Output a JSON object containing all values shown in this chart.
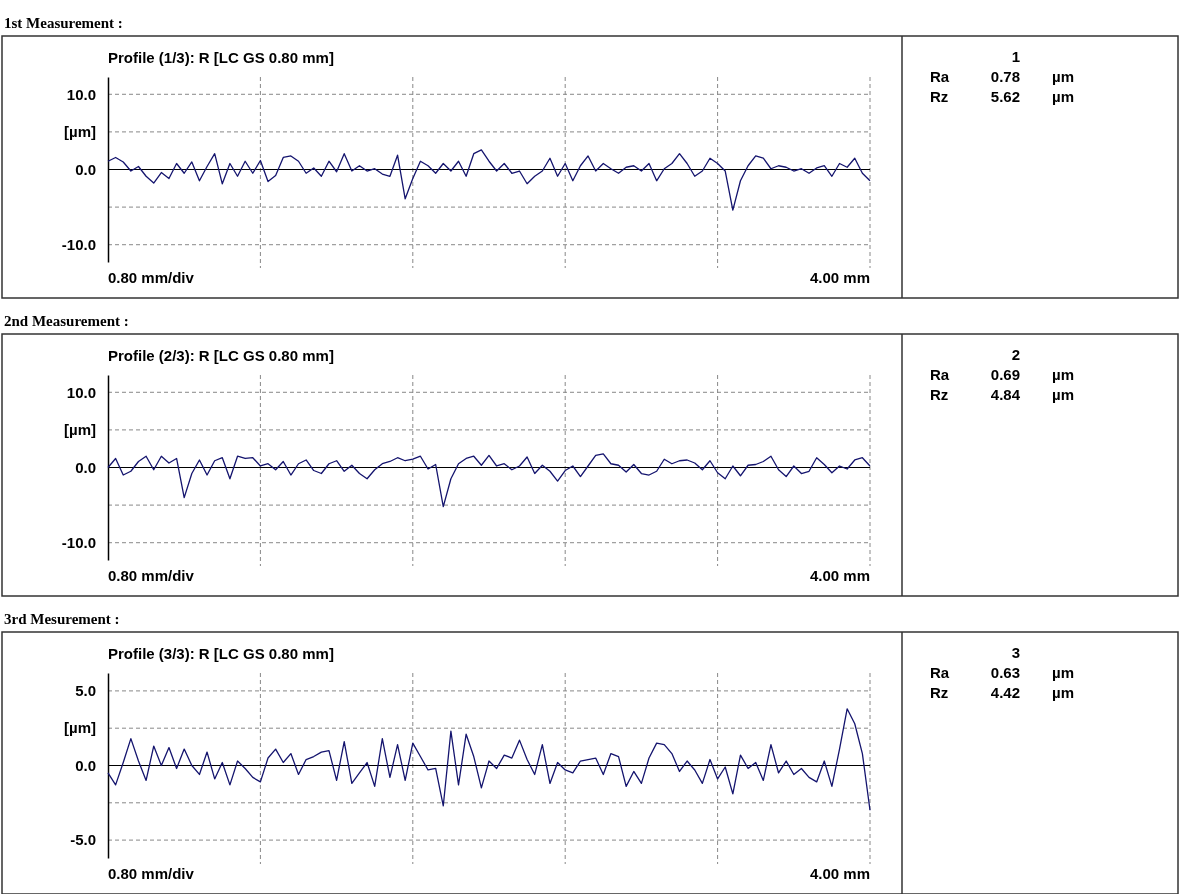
{
  "chart_data": [
    {
      "type": "line",
      "title": "1st Measurement :",
      "subtitle": "Profile (1/3): R [LC GS 0.80 mm]",
      "xlabel": "0.80 mm/div",
      "ylabel": "[µm]",
      "annotations": [
        "4.00 mm"
      ],
      "categories": [
        null,
        null,
        null,
        null,
        null,
        null,
        null,
        null,
        null,
        null,
        null,
        null,
        null,
        null,
        null,
        null,
        null,
        null,
        null,
        null,
        null,
        null,
        null,
        null,
        null,
        null,
        null,
        null,
        null,
        null,
        null,
        null,
        null,
        null,
        null,
        null,
        null,
        null,
        null,
        null,
        null,
        null,
        null,
        null,
        null,
        null,
        null,
        null,
        null,
        null,
        null,
        null,
        null,
        null,
        null,
        null,
        null,
        null,
        null,
        null,
        null,
        null,
        null,
        null,
        null,
        null,
        null,
        null,
        null,
        null,
        null,
        null,
        null,
        null,
        null,
        null,
        null,
        null,
        null,
        null,
        null,
        null,
        null,
        null,
        null,
        null,
        null,
        null,
        null,
        null,
        null,
        null,
        null,
        null,
        null,
        null,
        null,
        null,
        null,
        null,
        null
      ],
      "series": [
        {
          "color": "#14146e",
          "values": [
            1.1,
            1.6,
            1.0,
            -0.2,
            0.4,
            -0.9,
            -1.8,
            -0.4,
            -1.2,
            0.8,
            -0.5,
            1.0,
            -1.5,
            0.4,
            2.1,
            -1.9,
            0.8,
            -0.9,
            1.1,
            -0.5,
            1.2,
            -1.6,
            -0.8,
            1.6,
            1.8,
            1.1,
            -0.5,
            0.2,
            -0.9,
            1.1,
            -0.3,
            2.1,
            -0.2,
            0.5,
            -0.2,
            0.1,
            -0.6,
            -0.9,
            1.9,
            -3.9,
            -1.2,
            1.1,
            0.5,
            -0.5,
            0.8,
            -0.2,
            1.1,
            -0.9,
            2.1,
            2.6,
            1.1,
            -0.2,
            0.8,
            -0.5,
            -0.2,
            -1.9,
            -0.9,
            -0.2,
            1.5,
            -0.9,
            0.8,
            -1.5,
            0.5,
            1.8,
            -0.2,
            0.8,
            0.1,
            -0.5,
            0.3,
            0.5,
            -0.2,
            0.8,
            -1.5,
            0.1,
            0.8,
            2.1,
            0.8,
            -0.9,
            -0.2,
            1.5,
            0.8,
            -0.2,
            -5.4,
            -1.5,
            0.5,
            1.8,
            1.5,
            0.1,
            0.5,
            0.3,
            -0.2,
            0.1,
            -0.5,
            0.2,
            0.5,
            -0.9,
            0.8,
            0.3,
            1.5,
            -0.5,
            -1.5
          ]
        }
      ],
      "ylim": [
        -12.3,
        12.3
      ],
      "yticks": [
        {
          "value": 10,
          "label": "10.0"
        },
        {
          "value": 5,
          "label": null
        },
        {
          "value": 0,
          "label": "0.0"
        },
        {
          "value": -5,
          "label": null
        },
        {
          "value": -10,
          "label": "-10.0"
        }
      ],
      "ref_lines": [
        {
          "axis": "y",
          "value": 0,
          "color": "#000000"
        }
      ],
      "grid": true,
      "tick_labels": "y",
      "line_style": "solid"
    },
    {
      "type": "other",
      "title": "1",
      "annotations": [
        "Ra",
        "0.78",
        "µm",
        "Rz",
        "5.62",
        "µm"
      ]
    },
    {
      "type": "line",
      "title": "2nd Measurement :",
      "subtitle": "Profile (2/3): R [LC GS 0.80 mm]",
      "xlabel": "0.80 mm/div",
      "ylabel": "[µm]",
      "annotations": [
        "4.00 mm"
      ],
      "categories": [
        null,
        null,
        null,
        null,
        null,
        null,
        null,
        null,
        null,
        null,
        null,
        null,
        null,
        null,
        null,
        null,
        null,
        null,
        null,
        null,
        null,
        null,
        null,
        null,
        null,
        null,
        null,
        null,
        null,
        null,
        null,
        null,
        null,
        null,
        null,
        null,
        null,
        null,
        null,
        null,
        null,
        null,
        null,
        null,
        null,
        null,
        null,
        null,
        null,
        null,
        null,
        null,
        null,
        null,
        null,
        null,
        null,
        null,
        null,
        null,
        null,
        null,
        null,
        null,
        null,
        null,
        null,
        null,
        null,
        null,
        null,
        null,
        null,
        null,
        null,
        null,
        null,
        null,
        null,
        null,
        null,
        null,
        null,
        null,
        null,
        null,
        null,
        null,
        null,
        null,
        null,
        null,
        null,
        null,
        null,
        null,
        null,
        null,
        null,
        null,
        null
      ],
      "series": [
        {
          "color": "#14146e",
          "values": [
            0.0,
            1.2,
            -1.0,
            -0.5,
            0.8,
            1.5,
            -0.3,
            1.5,
            0.6,
            1.2,
            -4.0,
            -0.8,
            1.0,
            -1.0,
            0.9,
            1.3,
            -1.5,
            1.5,
            1.2,
            1.3,
            0.2,
            0.5,
            -0.3,
            0.8,
            -1.0,
            0.5,
            1.0,
            -0.4,
            -0.8,
            0.5,
            0.9,
            -0.5,
            0.3,
            -0.8,
            -1.5,
            -0.3,
            0.5,
            0.8,
            1.3,
            0.9,
            1.1,
            1.5,
            -0.2,
            0.4,
            -5.2,
            -1.5,
            0.5,
            1.2,
            1.5,
            0.3,
            1.6,
            0.2,
            0.5,
            -0.3,
            0.2,
            1.4,
            -0.8,
            0.3,
            -0.5,
            -1.8,
            -0.4,
            0.2,
            -1.2,
            0.2,
            1.6,
            1.8,
            0.5,
            0.3,
            -0.6,
            0.4,
            -0.8,
            -1.0,
            -0.5,
            1.1,
            0.5,
            0.9,
            1.0,
            0.6,
            -0.3,
            0.9,
            -0.7,
            -1.5,
            0.2,
            -1.1,
            0.3,
            0.4,
            0.8,
            1.5,
            -0.3,
            -1.2,
            0.2,
            -0.8,
            -0.5,
            1.3,
            0.4,
            -0.7,
            0.2,
            -0.2,
            1.0,
            1.3,
            0.2
          ]
        }
      ],
      "ylim": [
        -12.3,
        12.3
      ],
      "yticks": [
        {
          "value": 10,
          "label": "10.0"
        },
        {
          "value": 5,
          "label": null
        },
        {
          "value": 0,
          "label": "0.0"
        },
        {
          "value": -5,
          "label": null
        },
        {
          "value": -10,
          "label": "-10.0"
        }
      ],
      "ref_lines": [
        {
          "axis": "y",
          "value": 0,
          "color": "#000000"
        }
      ],
      "grid": true,
      "tick_labels": "y",
      "line_style": "solid"
    },
    {
      "type": "other",
      "title": "2",
      "annotations": [
        "Ra",
        "0.69",
        "µm",
        "Rz",
        "4.84",
        "µm"
      ]
    },
    {
      "type": "line",
      "title": "3rd Mesurement :",
      "subtitle": "Profile (3/3): R [LC GS 0.80 mm]",
      "xlabel": "0.80 mm/div",
      "ylabel": "[µm]",
      "annotations": [
        "4.00 mm"
      ],
      "categories": [
        null,
        null,
        null,
        null,
        null,
        null,
        null,
        null,
        null,
        null,
        null,
        null,
        null,
        null,
        null,
        null,
        null,
        null,
        null,
        null,
        null,
        null,
        null,
        null,
        null,
        null,
        null,
        null,
        null,
        null,
        null,
        null,
        null,
        null,
        null,
        null,
        null,
        null,
        null,
        null,
        null,
        null,
        null,
        null,
        null,
        null,
        null,
        null,
        null,
        null,
        null,
        null,
        null,
        null,
        null,
        null,
        null,
        null,
        null,
        null,
        null,
        null,
        null,
        null,
        null,
        null,
        null,
        null,
        null,
        null,
        null,
        null,
        null,
        null,
        null,
        null,
        null,
        null,
        null,
        null,
        null,
        null,
        null,
        null,
        null,
        null,
        null,
        null,
        null,
        null,
        null,
        null,
        null,
        null,
        null,
        null,
        null,
        null,
        null,
        null,
        null
      ],
      "series": [
        {
          "color": "#14146e",
          "values": [
            -0.5,
            -1.3,
            0.2,
            1.8,
            0.3,
            -1.0,
            1.3,
            0.0,
            1.2,
            -0.2,
            1.1,
            0.0,
            -0.6,
            0.9,
            -0.9,
            0.2,
            -1.3,
            0.3,
            -0.2,
            -0.8,
            -1.1,
            0.5,
            1.1,
            0.2,
            0.8,
            -0.6,
            0.4,
            0.6,
            0.9,
            1.0,
            -1.0,
            1.6,
            -1.2,
            -0.5,
            0.2,
            -1.4,
            1.8,
            -0.8,
            1.4,
            -1.0,
            1.5,
            0.6,
            -0.3,
            -0.2,
            -2.7,
            2.3,
            -1.3,
            2.1,
            0.6,
            -1.5,
            0.3,
            -0.2,
            0.7,
            0.5,
            1.7,
            0.4,
            -0.6,
            1.4,
            -1.2,
            0.2,
            -0.3,
            -0.5,
            0.3,
            0.4,
            0.5,
            -0.6,
            0.8,
            0.6,
            -1.4,
            -0.4,
            -1.2,
            0.5,
            1.5,
            1.4,
            0.8,
            -0.4,
            0.3,
            -0.3,
            -1.2,
            0.4,
            -0.9,
            -0.1,
            -1.9,
            0.7,
            -0.2,
            0.2,
            -1.0,
            1.4,
            -0.5,
            0.3,
            -0.6,
            -0.2,
            -0.8,
            -1.1,
            0.3,
            -1.4,
            1.1,
            3.8,
            2.8,
            0.8,
            -3.0
          ]
        }
      ],
      "ylim": [
        -6.2,
        6.2
      ],
      "yticks": [
        {
          "value": 5,
          "label": "5.0"
        },
        {
          "value": 2.5,
          "label": null
        },
        {
          "value": 0,
          "label": "0.0"
        },
        {
          "value": -2.5,
          "label": null
        },
        {
          "value": -5,
          "label": "-5.0"
        }
      ],
      "ref_lines": [
        {
          "axis": "y",
          "value": 0,
          "color": "#000000"
        }
      ],
      "grid": true,
      "tick_labels": "y",
      "line_style": "solid"
    },
    {
      "type": "other",
      "title": "3",
      "annotations": [
        "Ra",
        "0.63",
        "µm",
        "Rz",
        "4.42",
        "µm"
      ]
    }
  ]
}
